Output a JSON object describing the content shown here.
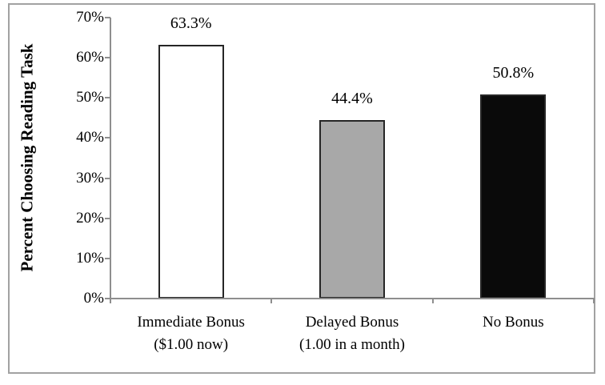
{
  "chart_data": {
    "type": "bar",
    "title": "",
    "ylabel": "Percent Choosing Reading Task",
    "xlabel": "",
    "ylim": [
      0,
      70
    ],
    "y_tick_step": 10,
    "y_tick_labels": [
      "0%",
      "10%",
      "20%",
      "30%",
      "40%",
      "50%",
      "60%",
      "70%"
    ],
    "grid": false,
    "legend": "none",
    "categories": [
      [
        "Immediate Bonus",
        "($1.00 now)"
      ],
      [
        "Delayed Bonus",
        "(1.00 in a month)"
      ],
      [
        "No Bonus"
      ]
    ],
    "values": [
      63.3,
      44.4,
      50.8
    ],
    "data_labels": [
      "63.3%",
      "44.4%",
      "50.8%"
    ],
    "bar_fills": [
      "#ffffff",
      "#a8a8a8",
      "#0a0a0a"
    ],
    "bar_border_color": "#262626",
    "axis_color": "#8e8e8e",
    "frame_border_color": "#a2a2a2"
  }
}
